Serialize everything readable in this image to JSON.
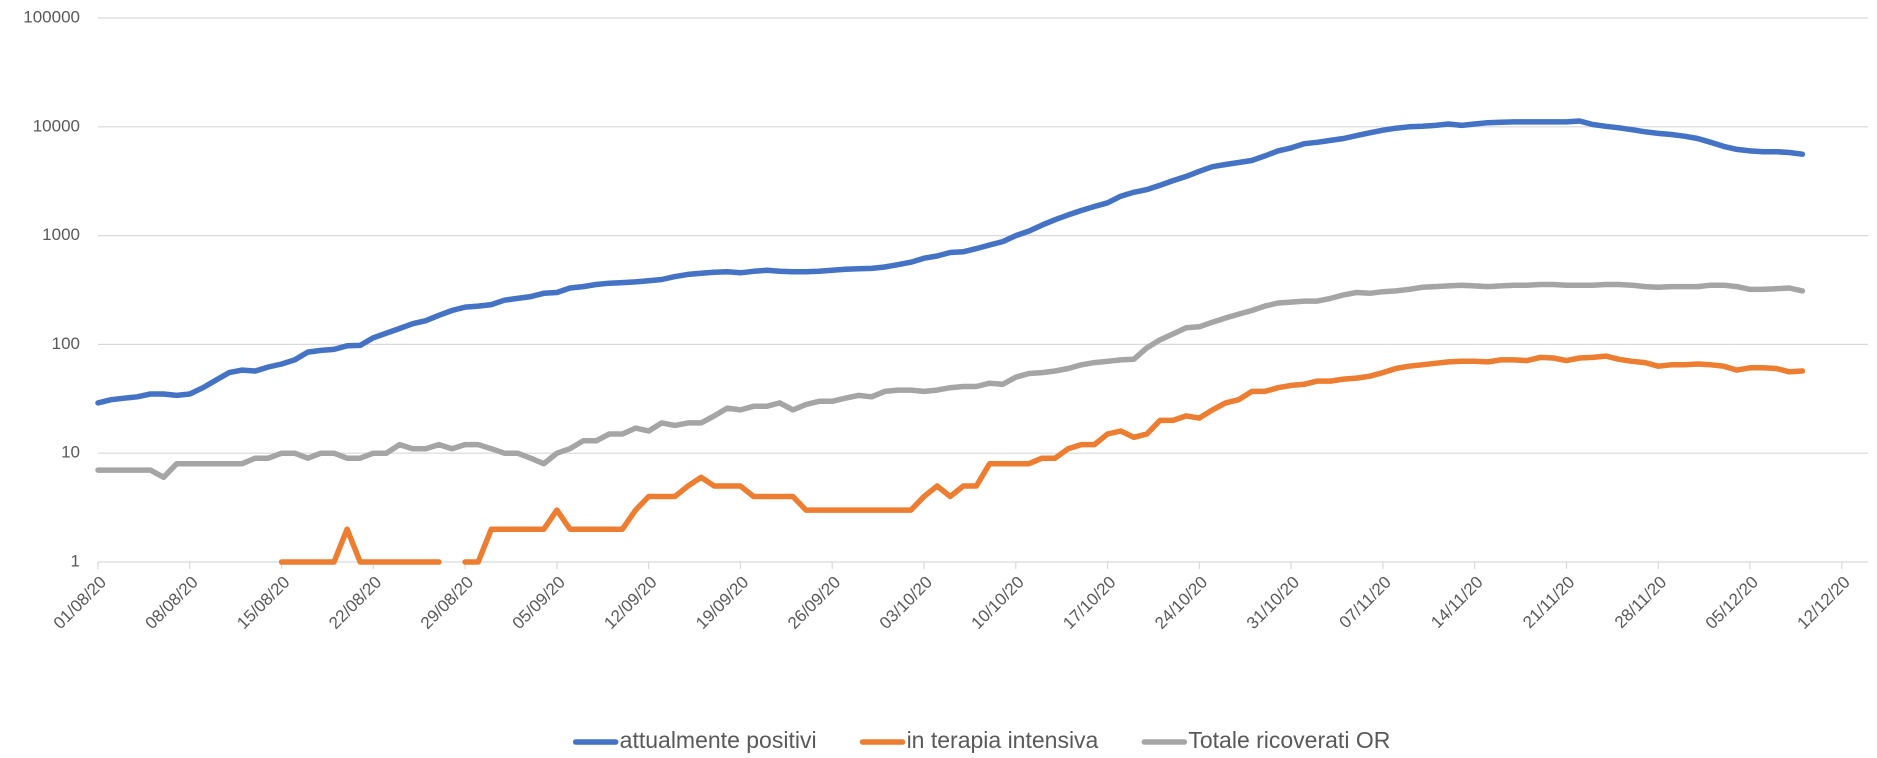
{
  "chart_data": {
    "type": "line",
    "log_scale": true,
    "grid": true,
    "legend": "bottom",
    "ylim": [
      1,
      100000
    ],
    "yticks": [
      1,
      10,
      100,
      1000,
      10000,
      100000
    ],
    "categories": [
      "01/08/20",
      null,
      null,
      null,
      null,
      null,
      null,
      "08/08/20",
      null,
      null,
      null,
      null,
      null,
      null,
      "15/08/20",
      null,
      null,
      null,
      null,
      null,
      null,
      "22/08/20",
      null,
      null,
      null,
      null,
      null,
      null,
      "29/08/20",
      null,
      null,
      null,
      null,
      null,
      null,
      "05/09/20",
      null,
      null,
      null,
      null,
      null,
      null,
      "12/09/20",
      null,
      null,
      null,
      null,
      null,
      null,
      "19/09/20",
      null,
      null,
      null,
      null,
      null,
      null,
      "26/09/20",
      null,
      null,
      null,
      null,
      null,
      null,
      "03/10/20",
      null,
      null,
      null,
      null,
      null,
      null,
      "10/10/20",
      null,
      null,
      null,
      null,
      null,
      null,
      "17/10/20",
      null,
      null,
      null,
      null,
      null,
      null,
      "24/10/20",
      null,
      null,
      null,
      null,
      null,
      null,
      "31/10/20",
      null,
      null,
      null,
      null,
      null,
      null,
      "07/11/20",
      null,
      null,
      null,
      null,
      null,
      null,
      "14/11/20",
      null,
      null,
      null,
      null,
      null,
      null,
      "21/11/20",
      null,
      null,
      null,
      null,
      null,
      null,
      "28/11/20",
      null,
      null,
      null,
      null,
      null,
      null,
      "05/12/20",
      null,
      null,
      null,
      null,
      null,
      null,
      "12/12/20"
    ],
    "series": [
      {
        "name": "attualmente positivi",
        "color": "#4472c4",
        "values": [
          29,
          31,
          32,
          33,
          35,
          35,
          34,
          35,
          40,
          47,
          55,
          58,
          57,
          62,
          66,
          72,
          85,
          88,
          90,
          97,
          98,
          115,
          127,
          140,
          155,
          165,
          185,
          205,
          220,
          225,
          232,
          255,
          265,
          275,
          295,
          300,
          330,
          340,
          355,
          365,
          370,
          375,
          385,
          395,
          420,
          440,
          450,
          460,
          465,
          455,
          470,
          480,
          470,
          465,
          465,
          470,
          480,
          490,
          495,
          500,
          515,
          540,
          570,
          620,
          650,
          700,
          710,
          760,
          820,
          880,
          1000,
          1100,
          1250,
          1400,
          1550,
          1700,
          1850,
          2000,
          2300,
          2500,
          2650,
          2900,
          3200,
          3500,
          3900,
          4300,
          4500,
          4700,
          4900,
          5400,
          6000,
          6400,
          7000,
          7200,
          7500,
          7800,
          8300,
          8800,
          9300,
          9700,
          10000,
          10100,
          10300,
          10600,
          10300,
          10600,
          10900,
          11000,
          11100,
          11100,
          11100,
          11100,
          11100,
          11300,
          10500,
          10100,
          9800,
          9400,
          9000,
          8700,
          8500,
          8200,
          7800,
          7200,
          6600,
          6200,
          6000,
          5900,
          5900,
          5800,
          5600,
          null,
          null,
          null
        ]
      },
      {
        "name": "in terapia intensiva",
        "color": "#ed7d31",
        "values": [
          null,
          null,
          null,
          null,
          null,
          null,
          null,
          null,
          null,
          null,
          null,
          null,
          null,
          null,
          1,
          1,
          1,
          1,
          1,
          2,
          1,
          1,
          1,
          1,
          1,
          1,
          1,
          null,
          1,
          1,
          2,
          2,
          2,
          2,
          2,
          3,
          2,
          2,
          2,
          2,
          2,
          3,
          4,
          4,
          4,
          5,
          6,
          5,
          5,
          5,
          4,
          4,
          4,
          4,
          3,
          3,
          3,
          3,
          3,
          3,
          3,
          3,
          3,
          4,
          5,
          4,
          5,
          5,
          8,
          8,
          8,
          8,
          9,
          9,
          11,
          12,
          12,
          15,
          16,
          14,
          15,
          20,
          20,
          22,
          21,
          25,
          29,
          31,
          37,
          37,
          40,
          42,
          43,
          46,
          46,
          48,
          49,
          51,
          55,
          60,
          63,
          65,
          67,
          69,
          70,
          70,
          69,
          72,
          72,
          71,
          76,
          75,
          71,
          75,
          76,
          78,
          73,
          70,
          68,
          63,
          65,
          65,
          66,
          65,
          63,
          58,
          61,
          61,
          60,
          56,
          57,
          null,
          null,
          null
        ]
      },
      {
        "name": "Totale ricoverati OR",
        "color": "#a5a5a5",
        "values": [
          7,
          7,
          7,
          7,
          7,
          6,
          8,
          8,
          8,
          8,
          8,
          8,
          9,
          9,
          10,
          10,
          9,
          10,
          10,
          9,
          9,
          10,
          10,
          12,
          11,
          11,
          12,
          11,
          12,
          12,
          11,
          10,
          10,
          9,
          8,
          10,
          11,
          13,
          13,
          15,
          15,
          17,
          16,
          19,
          18,
          19,
          19,
          22,
          26,
          25,
          27,
          27,
          29,
          25,
          28,
          30,
          30,
          32,
          34,
          33,
          37,
          38,
          38,
          37,
          38,
          40,
          41,
          41,
          44,
          43,
          50,
          54,
          55,
          57,
          60,
          65,
          68,
          70,
          72,
          73,
          93,
          110,
          125,
          142,
          145,
          160,
          175,
          190,
          205,
          225,
          240,
          245,
          250,
          250,
          265,
          285,
          300,
          295,
          305,
          310,
          320,
          335,
          340,
          345,
          350,
          345,
          340,
          345,
          350,
          350,
          355,
          355,
          350,
          350,
          350,
          355,
          355,
          350,
          340,
          335,
          340,
          340,
          340,
          350,
          350,
          340,
          320,
          320,
          325,
          330,
          310,
          null,
          null,
          null
        ]
      }
    ]
  }
}
